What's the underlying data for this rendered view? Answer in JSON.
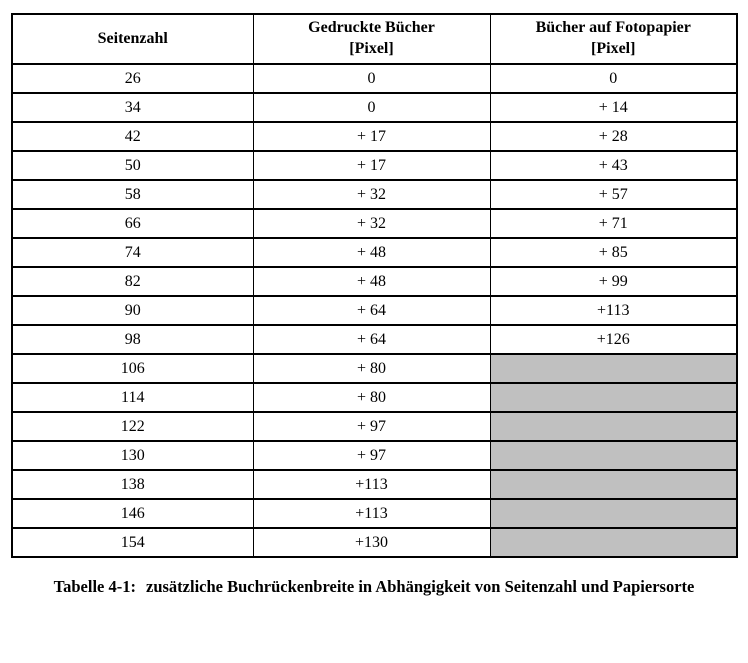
{
  "table": {
    "columns": [
      {
        "label": "Seitenzahl",
        "sublabel": ""
      },
      {
        "label": "Gedruckte Bücher",
        "sublabel": "[Pixel]"
      },
      {
        "label": "Bücher auf Fotopapier",
        "sublabel": "[Pixel]"
      }
    ],
    "rows": [
      {
        "seitenzahl": "26",
        "gedruckt": "0",
        "foto": "0"
      },
      {
        "seitenzahl": "34",
        "gedruckt": "0",
        "foto": "+ 14"
      },
      {
        "seitenzahl": "42",
        "gedruckt": "+ 17",
        "foto": "+ 28"
      },
      {
        "seitenzahl": "50",
        "gedruckt": "+ 17",
        "foto": "+ 43"
      },
      {
        "seitenzahl": "58",
        "gedruckt": "+ 32",
        "foto": "+ 57"
      },
      {
        "seitenzahl": "66",
        "gedruckt": "+ 32",
        "foto": "+ 71"
      },
      {
        "seitenzahl": "74",
        "gedruckt": "+ 48",
        "foto": "+ 85"
      },
      {
        "seitenzahl": "82",
        "gedruckt": "+ 48",
        "foto": "+ 99"
      },
      {
        "seitenzahl": "90",
        "gedruckt": "+ 64",
        "foto": "+113"
      },
      {
        "seitenzahl": "98",
        "gedruckt": "+ 64",
        "foto": "+126"
      },
      {
        "seitenzahl": "106",
        "gedruckt": "+ 80",
        "foto": null
      },
      {
        "seitenzahl": "114",
        "gedruckt": "+ 80",
        "foto": null
      },
      {
        "seitenzahl": "122",
        "gedruckt": "+ 97",
        "foto": null
      },
      {
        "seitenzahl": "130",
        "gedruckt": "+ 97",
        "foto": null
      },
      {
        "seitenzahl": "138",
        "gedruckt": "+113",
        "foto": null
      },
      {
        "seitenzahl": "146",
        "gedruckt": "+113",
        "foto": null
      },
      {
        "seitenzahl": "154",
        "gedruckt": "+130",
        "foto": null
      }
    ]
  },
  "caption": {
    "label": "Tabelle 4-1:",
    "text": "zusätzliche Buchrückenbreite in Abhängigkeit von Seitenzahl und Papiersorte"
  },
  "colors": {
    "empty_cell_gray": "#c0c0c0",
    "border": "#000000",
    "background": "#ffffff"
  }
}
